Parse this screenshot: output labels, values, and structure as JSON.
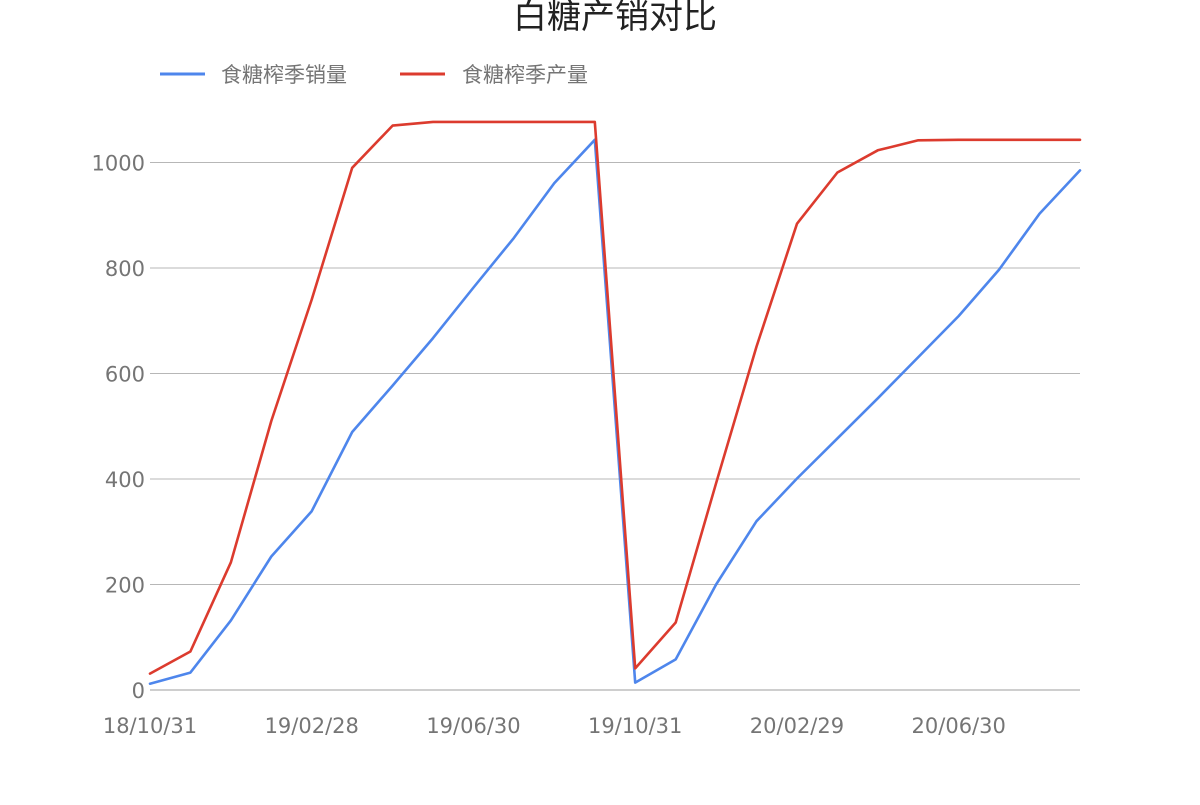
{
  "chart_data": {
    "type": "line",
    "title": "白糖产销对比",
    "xlabel": "",
    "ylabel": "",
    "ylim": [
      0,
      1090
    ],
    "yticks": [
      0,
      200,
      400,
      600,
      800,
      1000
    ],
    "grid": true,
    "legend_position": "top-left",
    "x": [
      "18/10/31",
      "18/11/30",
      "18/12/31",
      "19/01/31",
      "19/02/28",
      "19/03/31",
      "19/04/30",
      "19/05/31",
      "19/06/30",
      "19/07/31",
      "19/08/31",
      "19/09/30",
      "19/10/31",
      "19/11/30",
      "19/12/31",
      "20/01/31",
      "20/02/29",
      "20/03/31",
      "20/04/30",
      "20/05/31",
      "20/06/30",
      "20/07/31",
      "20/08/31",
      "20/09/30"
    ],
    "xtick_labels": [
      "18/10/31",
      "19/02/28",
      "19/06/30",
      "19/10/31",
      "20/02/29",
      "20/06/30"
    ],
    "series": [
      {
        "name": "食糖榨季销量",
        "color": "#4e86ec",
        "values": [
          12,
          33,
          132,
          253,
          339,
          489,
          577,
          667,
          763,
          857,
          961,
          1043,
          14,
          58,
          200,
          320,
          401,
          477,
          553,
          631,
          709,
          797,
          903,
          985
        ]
      },
      {
        "name": "食糖榨季产量",
        "color": "#dc3b2e",
        "values": [
          31,
          73,
          242,
          510,
          740,
          990,
          1070,
          1077,
          1077,
          1077,
          1077,
          1077,
          41,
          128,
          392,
          651,
          884,
          981,
          1023,
          1042,
          1043,
          1043,
          1043,
          1043
        ]
      }
    ]
  }
}
